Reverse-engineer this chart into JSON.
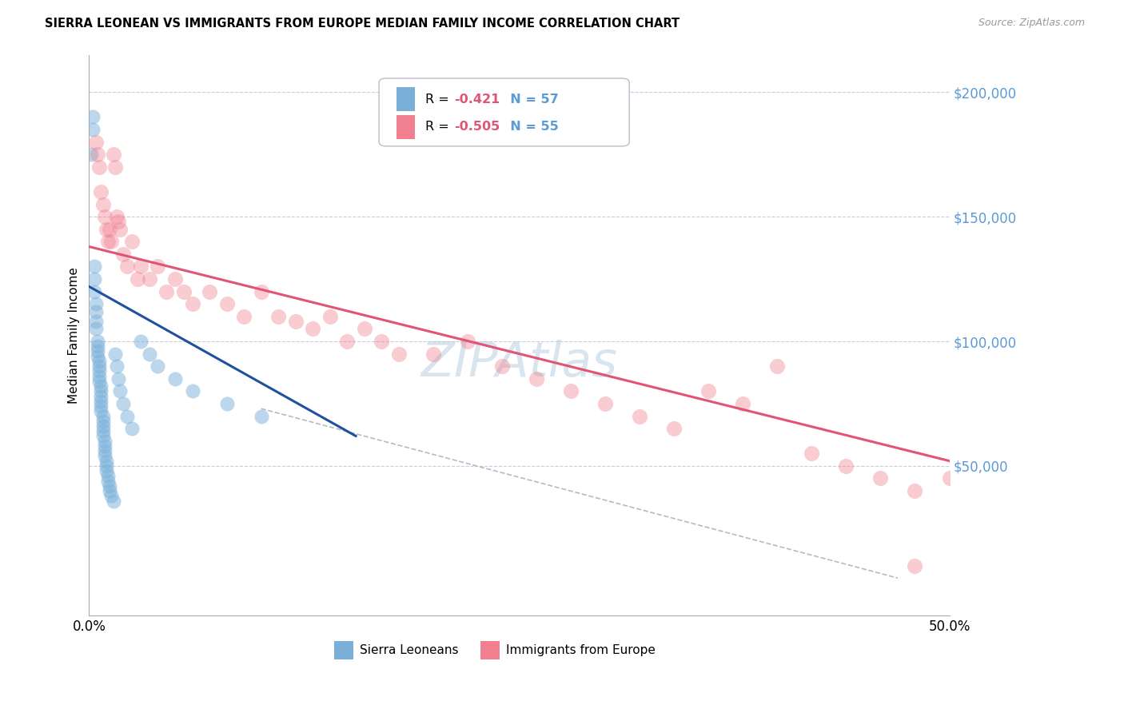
{
  "title": "SIERRA LEONEAN VS IMMIGRANTS FROM EUROPE MEDIAN FAMILY INCOME CORRELATION CHART",
  "source": "Source: ZipAtlas.com",
  "ylabel": "Median Family Income",
  "y_ticks": [
    0,
    50000,
    100000,
    150000,
    200000
  ],
  "y_tick_labels": [
    "",
    "$50,000",
    "$100,000",
    "$150,000",
    "$200,000"
  ],
  "y_tick_color": "#5b9bd5",
  "xlim": [
    0.0,
    0.5
  ],
  "ylim": [
    -10000,
    215000
  ],
  "blue_color": "#7ab0d8",
  "pink_color": "#f08090",
  "blue_line_color": "#2050a0",
  "pink_line_color": "#e05575",
  "dashed_line_color": "#b8b8c8",
  "grid_color": "#ccccdd",
  "legend_r1_label": "R = ",
  "legend_r1_val": "-0.421",
  "legend_r1_n": "N = 57",
  "legend_r2_label": "R = ",
  "legend_r2_val": "-0.505",
  "legend_r2_n": "N = 55",
  "watermark": "ZIPAtlas",
  "sierra_x": [
    0.001,
    0.002,
    0.002,
    0.003,
    0.003,
    0.003,
    0.004,
    0.004,
    0.004,
    0.004,
    0.005,
    0.005,
    0.005,
    0.005,
    0.006,
    0.006,
    0.006,
    0.006,
    0.006,
    0.007,
    0.007,
    0.007,
    0.007,
    0.007,
    0.007,
    0.008,
    0.008,
    0.008,
    0.008,
    0.008,
    0.009,
    0.009,
    0.009,
    0.009,
    0.01,
    0.01,
    0.01,
    0.011,
    0.011,
    0.012,
    0.012,
    0.013,
    0.014,
    0.015,
    0.016,
    0.017,
    0.018,
    0.02,
    0.022,
    0.025,
    0.03,
    0.035,
    0.04,
    0.05,
    0.06,
    0.08,
    0.1
  ],
  "sierra_y": [
    175000,
    185000,
    190000,
    130000,
    125000,
    120000,
    115000,
    112000,
    108000,
    105000,
    100000,
    98000,
    96000,
    94000,
    92000,
    90000,
    88000,
    86000,
    84000,
    82000,
    80000,
    78000,
    76000,
    74000,
    72000,
    70000,
    68000,
    66000,
    64000,
    62000,
    60000,
    58000,
    56000,
    54000,
    52000,
    50000,
    48000,
    46000,
    44000,
    42000,
    40000,
    38000,
    36000,
    95000,
    90000,
    85000,
    80000,
    75000,
    70000,
    65000,
    100000,
    95000,
    90000,
    85000,
    80000,
    75000,
    70000
  ],
  "europe_x": [
    0.004,
    0.005,
    0.006,
    0.007,
    0.008,
    0.009,
    0.01,
    0.011,
    0.012,
    0.013,
    0.014,
    0.015,
    0.016,
    0.017,
    0.018,
    0.02,
    0.022,
    0.025,
    0.028,
    0.03,
    0.035,
    0.04,
    0.045,
    0.05,
    0.055,
    0.06,
    0.07,
    0.08,
    0.09,
    0.1,
    0.11,
    0.12,
    0.13,
    0.14,
    0.15,
    0.16,
    0.17,
    0.18,
    0.2,
    0.22,
    0.24,
    0.26,
    0.28,
    0.3,
    0.32,
    0.34,
    0.36,
    0.38,
    0.4,
    0.42,
    0.44,
    0.46,
    0.48,
    0.5,
    0.48
  ],
  "europe_y": [
    180000,
    175000,
    170000,
    160000,
    155000,
    150000,
    145000,
    140000,
    145000,
    140000,
    175000,
    170000,
    150000,
    148000,
    145000,
    135000,
    130000,
    140000,
    125000,
    130000,
    125000,
    130000,
    120000,
    125000,
    120000,
    115000,
    120000,
    115000,
    110000,
    120000,
    110000,
    108000,
    105000,
    110000,
    100000,
    105000,
    100000,
    95000,
    95000,
    100000,
    90000,
    85000,
    80000,
    75000,
    70000,
    65000,
    80000,
    75000,
    90000,
    55000,
    50000,
    45000,
    40000,
    45000,
    10000
  ],
  "blue_trend_x": [
    0.0,
    0.155
  ],
  "blue_trend_y": [
    122000,
    62000
  ],
  "pink_trend_x": [
    0.0,
    0.5
  ],
  "pink_trend_y": [
    138000,
    52000
  ],
  "dashed_trend_x": [
    0.1,
    0.47
  ],
  "dashed_trend_y": [
    73000,
    5000
  ]
}
